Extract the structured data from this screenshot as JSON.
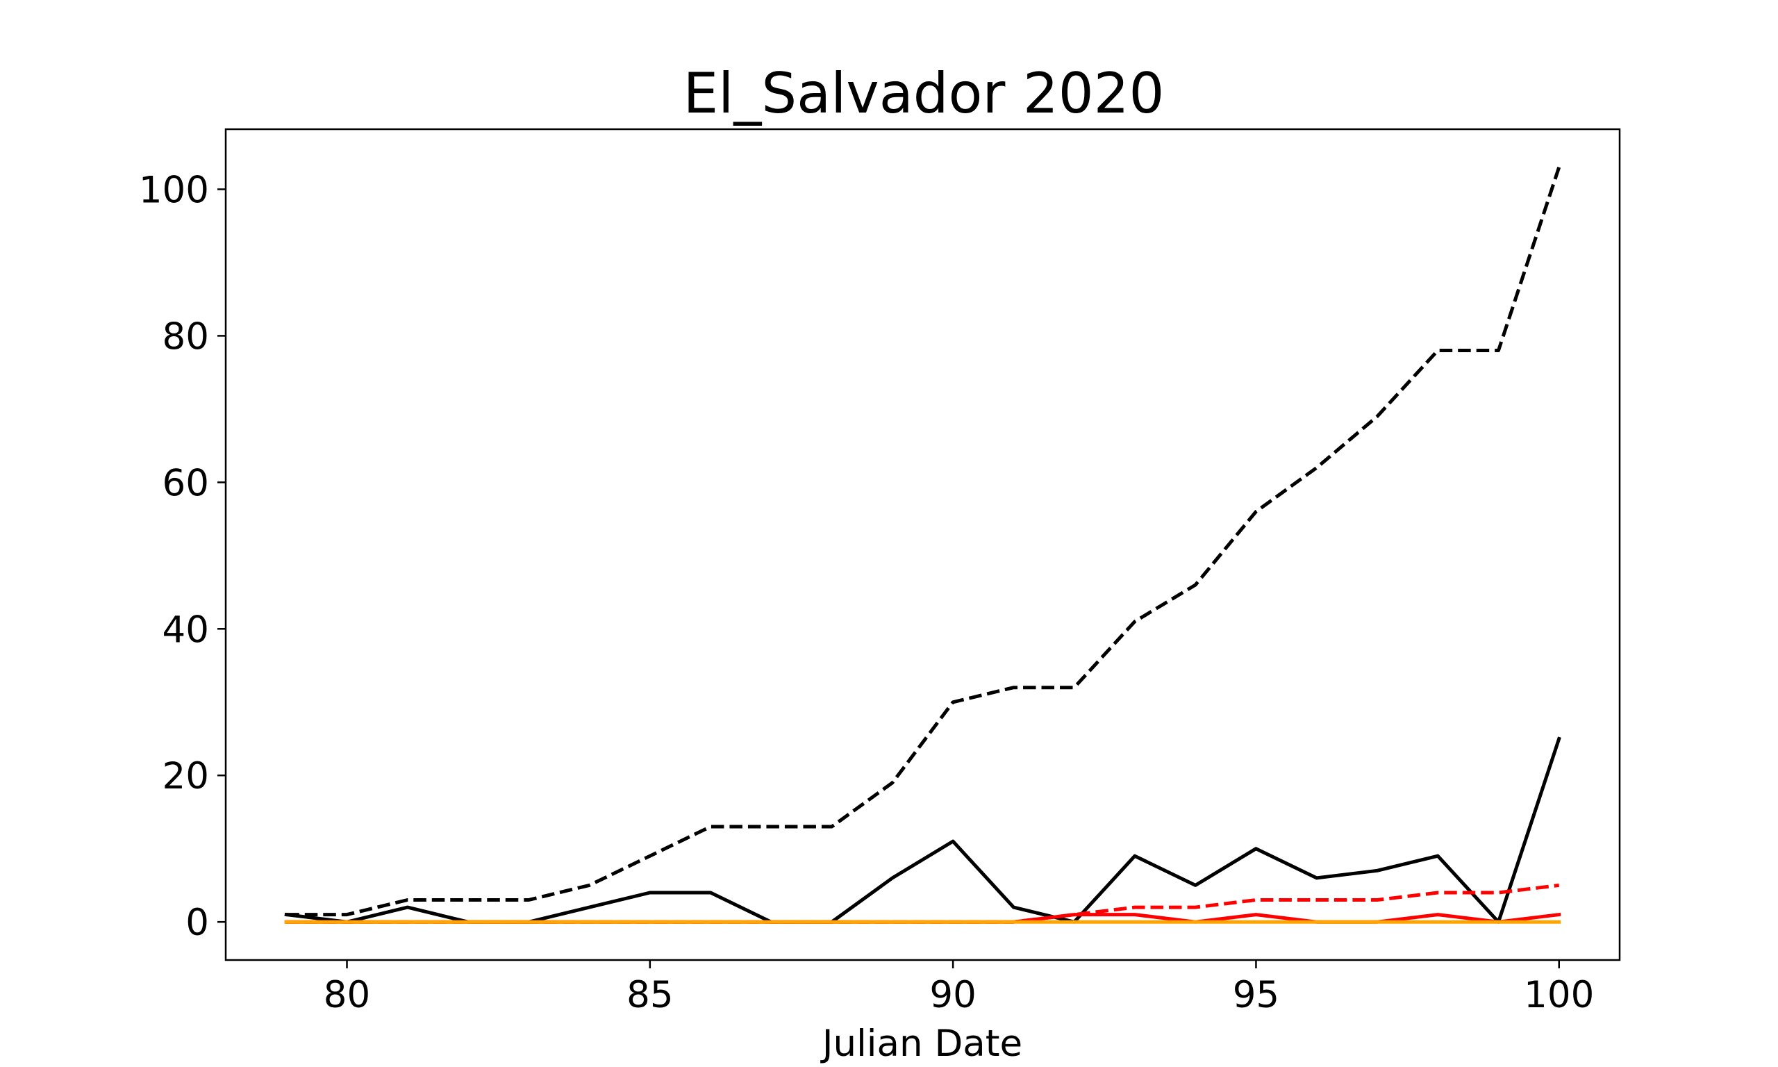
{
  "chart_data": {
    "type": "line",
    "title": "El_Salvador 2020",
    "xlabel": "Julian Date",
    "ylabel": "",
    "xlim": [
      78,
      101
    ],
    "ylim": [
      -5.2,
      108.2
    ],
    "xticks": [
      80,
      85,
      90,
      95,
      100
    ],
    "yticks": [
      0,
      20,
      40,
      60,
      80,
      100
    ],
    "grid": false,
    "x": [
      79,
      80,
      81,
      82,
      83,
      84,
      85,
      86,
      87,
      88,
      89,
      90,
      91,
      92,
      93,
      94,
      95,
      96,
      97,
      98,
      99,
      100
    ],
    "series": [
      {
        "color": "#000000",
        "style": "dashed",
        "values": [
          1,
          1,
          3,
          3,
          3,
          5,
          9,
          13,
          13,
          13,
          19,
          30,
          32,
          32,
          41,
          46,
          56,
          62,
          69,
          78,
          78,
          103
        ]
      },
      {
        "color": "#000000",
        "style": "solid",
        "values": [
          1,
          0,
          2,
          0,
          0,
          2,
          4,
          4,
          0,
          0,
          6,
          11,
          2,
          0,
          9,
          5,
          10,
          6,
          7,
          9,
          0,
          25
        ]
      },
      {
        "color": "#ff0000",
        "style": "dashed",
        "values": [
          0,
          0,
          0,
          0,
          0,
          0,
          0,
          0,
          0,
          0,
          0,
          0,
          0,
          1,
          2,
          2,
          3,
          3,
          3,
          4,
          4,
          5
        ]
      },
      {
        "color": "#ff0000",
        "style": "solid",
        "values": [
          0,
          0,
          0,
          0,
          0,
          0,
          0,
          0,
          0,
          0,
          0,
          0,
          0,
          1,
          1,
          0,
          1,
          0,
          0,
          1,
          0,
          1
        ]
      },
      {
        "color": "#ffa500",
        "style": "solid",
        "values": [
          0,
          0,
          0,
          0,
          0,
          0,
          0,
          0,
          0,
          0,
          0,
          0,
          0,
          0,
          0,
          0,
          0,
          0,
          0,
          0,
          0,
          0
        ]
      }
    ]
  }
}
